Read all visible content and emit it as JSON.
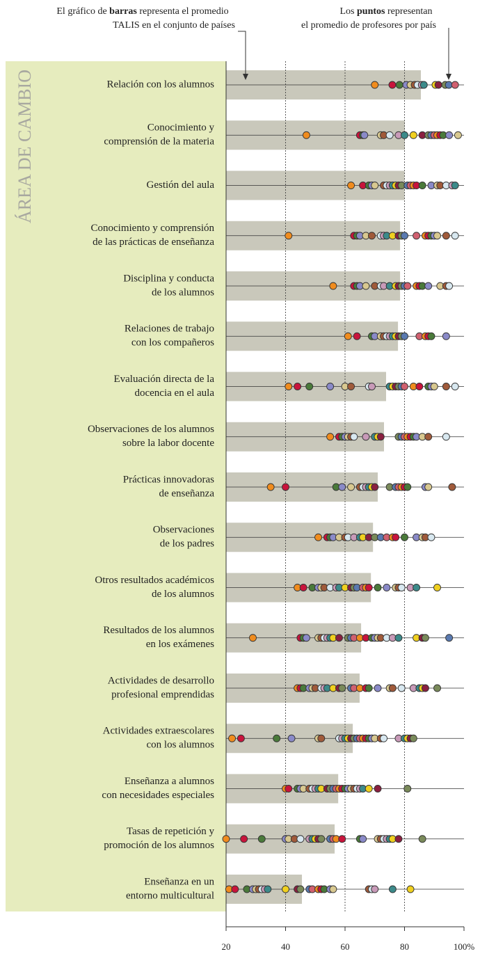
{
  "chart_data": {
    "type": "bar_dot",
    "annotations": {
      "left": {
        "line1": [
          "El gráfico de ",
          "barras",
          " representa el promedio"
        ],
        "line2": "TALIS en el conjunto de países"
      },
      "right": {
        "line1": [
          "Los ",
          "puntos",
          " representan"
        ],
        "line2": "el promedio de profesores por país"
      }
    },
    "y_label": "ÁREA DE CAMBIO",
    "categories": [
      [
        "Relación con los alumnos"
      ],
      [
        "Conocimiento y",
        "comprensión de la materia"
      ],
      [
        "Gestión del aula"
      ],
      [
        "Conocimiento y comprensión",
        "de las prácticas de enseñanza"
      ],
      [
        "Disciplina y conducta",
        "de los alumnos"
      ],
      [
        "Relaciones de trabajo",
        "con los compañeros"
      ],
      [
        "Evaluación directa de la",
        "docencia en el aula"
      ],
      [
        "Observaciones de los alumnos",
        "sobre la labor docente"
      ],
      [
        "Prácticas innovadoras",
        "de enseñanza"
      ],
      [
        "Observaciones",
        "de los padres"
      ],
      [
        "Otros resultados académicos",
        "de los alumnos"
      ],
      [
        "Resultados de los alumnos",
        "en los exámenes"
      ],
      [
        "Actividades de desarrollo",
        "profesional emprendidas"
      ],
      [
        "Actividades extraescolares",
        "con los alumnos"
      ],
      [
        "Enseñanza a alumnos",
        "con necesidades especiales"
      ],
      [
        "Tasas de repetición y",
        "promoción de los alumnos"
      ],
      [
        "Enseñanza en un",
        "entorno multicultural"
      ]
    ],
    "values": [
      85.5,
      80.1,
      80,
      78.5,
      78.5,
      77.8,
      73.8,
      73.1,
      71,
      69.4,
      68.7,
      65.4,
      64.9,
      62.6,
      57.7,
      56.5,
      45.5
    ],
    "bar_color": "#c9c8bb",
    "points": [
      [
        70,
        75.9,
        78.3,
        80.6,
        82,
        83.4,
        84.4,
        85.8,
        86.5,
        90.4,
        91.4,
        93.7,
        94.9,
        97
      ],
      [
        47,
        65,
        66,
        66.5,
        72,
        73,
        75,
        78,
        80,
        83,
        86,
        88,
        89,
        90,
        91,
        92,
        93,
        95,
        98
      ],
      [
        62,
        66,
        68,
        69,
        70,
        73,
        74,
        75,
        76,
        77,
        78,
        79,
        81,
        82,
        83,
        84,
        86,
        89,
        91,
        92,
        94,
        96,
        97
      ],
      [
        41,
        63,
        64,
        65,
        67,
        69,
        72,
        73,
        74,
        76,
        78,
        79,
        80,
        84,
        87,
        88,
        89,
        90,
        91,
        94,
        97
      ],
      [
        56,
        63,
        64,
        65,
        67,
        70,
        72,
        73,
        75,
        77,
        78,
        79,
        80,
        81,
        84,
        85,
        86,
        88,
        92,
        94,
        95
      ],
      [
        61,
        64,
        69,
        70,
        72,
        73,
        74,
        75,
        76,
        77,
        78,
        79,
        80,
        85,
        87,
        88,
        89,
        94
      ],
      [
        41,
        44,
        48,
        55,
        60,
        62,
        68,
        69,
        75,
        76,
        77,
        78,
        79,
        80,
        83,
        85,
        88,
        89,
        90,
        94,
        97
      ],
      [
        55,
        58,
        59,
        60,
        61,
        62,
        63,
        67,
        70,
        71,
        72,
        78,
        79,
        80,
        81,
        82,
        83,
        84,
        86,
        88,
        94
      ],
      [
        35,
        40,
        57,
        59,
        62,
        65,
        66,
        67,
        68,
        69,
        70,
        75,
        77,
        78,
        79,
        80,
        81,
        87,
        88,
        96
      ],
      [
        51,
        54,
        55,
        56,
        58,
        60,
        61,
        63,
        65,
        66,
        68,
        70,
        72,
        74,
        76,
        77,
        80,
        84,
        86,
        87,
        89
      ],
      [
        44,
        46,
        49,
        51,
        52,
        53,
        55,
        57,
        58,
        60,
        62,
        63,
        64,
        66,
        67,
        68,
        71,
        74,
        77,
        78,
        79,
        82,
        84,
        91
      ],
      [
        29,
        45,
        46,
        47,
        51,
        52,
        53,
        54,
        55,
        56,
        58,
        61,
        62,
        63,
        65,
        67,
        69,
        70,
        71,
        72,
        74,
        76,
        78,
        84,
        86,
        87,
        95
      ],
      [
        44,
        45,
        46,
        48,
        49,
        50,
        52,
        53,
        54,
        56,
        58,
        59,
        62,
        63,
        65,
        67,
        68,
        71,
        75,
        76,
        79,
        83,
        85,
        86,
        87,
        91
      ],
      [
        22,
        25,
        37,
        42,
        51,
        52,
        58,
        59,
        60,
        61,
        62,
        63,
        64,
        65,
        66,
        67,
        68,
        69,
        70,
        72,
        73,
        78,
        80,
        81,
        82,
        83
      ],
      [
        40,
        41,
        44,
        45,
        46,
        48,
        49,
        50,
        51,
        52,
        54,
        55,
        56,
        57,
        58,
        59,
        60,
        61,
        62,
        63,
        64,
        65,
        66,
        68,
        71,
        81
      ],
      [
        20,
        26,
        32,
        40,
        41,
        43,
        45,
        48,
        49,
        50,
        51,
        52,
        55,
        56,
        57,
        59,
        65,
        66,
        71,
        72,
        73,
        74,
        75,
        76,
        78,
        86
      ],
      [
        21,
        23,
        27,
        29,
        30,
        31,
        32,
        33,
        34,
        40,
        44,
        45,
        48,
        49,
        51,
        52,
        53,
        55,
        56,
        68,
        69,
        70,
        76,
        82
      ]
    ],
    "point_colors": [
      "#f08c1e",
      "#c8143c",
      "#4a7a3a",
      "#8a8ac8",
      "#d8c890",
      "#a05a3a",
      "#d8e8f0",
      "#c89ab8",
      "#3c8a8a",
      "#f0d020",
      "#8a2040",
      "#7a8a5a",
      "#5a7ab0",
      "#d06070"
    ],
    "xlim": [
      20,
      100
    ],
    "xticks": [
      20,
      40,
      60,
      80,
      {
        "value": 100,
        "label": "100%"
      }
    ],
    "grid": true
  }
}
